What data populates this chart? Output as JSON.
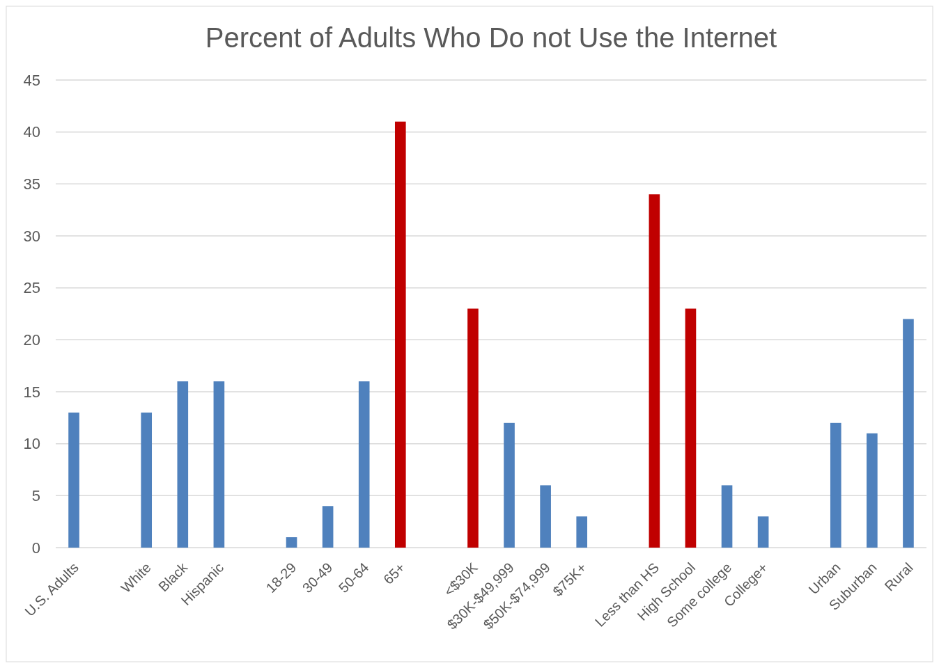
{
  "chart_data": {
    "type": "bar",
    "title": "Percent of Adults Who Do not Use the Internet",
    "categories": [
      "U.S. Adults",
      null,
      "White",
      "Black",
      "Hispanic",
      null,
      "18-29",
      "30-49",
      "50-64",
      "65+",
      null,
      "<$30K",
      "$30K-$49,999",
      "$50K-$74,999",
      "$75K+",
      null,
      "Less than HS",
      "High School",
      "Some college",
      "College+",
      null,
      "Urban",
      "Suburban",
      "Rural"
    ],
    "values": [
      13,
      null,
      13,
      16,
      16,
      null,
      1,
      4,
      16,
      41,
      null,
      23,
      12,
      6,
      3,
      null,
      34,
      23,
      6,
      3,
      null,
      12,
      11,
      22
    ],
    "colors": [
      "#4f81bd",
      null,
      "#4f81bd",
      "#4f81bd",
      "#4f81bd",
      null,
      "#4f81bd",
      "#4f81bd",
      "#4f81bd",
      "#c00000",
      null,
      "#c00000",
      "#4f81bd",
      "#4f81bd",
      "#4f81bd",
      null,
      "#c00000",
      "#c00000",
      "#4f81bd",
      "#4f81bd",
      null,
      "#4f81bd",
      "#4f81bd",
      "#4f81bd"
    ],
    "ylim": [
      0,
      45
    ],
    "yticks": [
      0,
      5,
      10,
      15,
      20,
      25,
      30,
      35,
      40,
      45
    ],
    "grid": "y"
  }
}
